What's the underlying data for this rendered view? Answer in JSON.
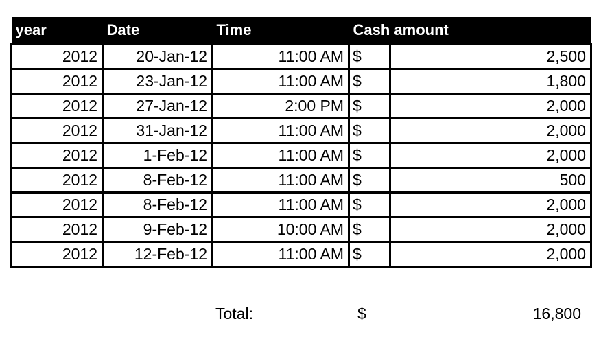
{
  "sheet": {
    "headers": [
      "year",
      "Date",
      "Time",
      "Cash amount"
    ],
    "currency_symbol": "$",
    "rows": [
      {
        "year": "2012",
        "date": "20-Jan-12",
        "time": "11:00 AM",
        "amount": "2,500"
      },
      {
        "year": "2012",
        "date": "23-Jan-12",
        "time": "11:00 AM",
        "amount": "1,800"
      },
      {
        "year": "2012",
        "date": "27-Jan-12",
        "time": "2:00 PM",
        "amount": "2,000"
      },
      {
        "year": "2012",
        "date": "31-Jan-12",
        "time": "11:00 AM",
        "amount": "2,000"
      },
      {
        "year": "2012",
        "date": "1-Feb-12",
        "time": "11:00 AM",
        "amount": "2,000"
      },
      {
        "year": "2012",
        "date": "8-Feb-12",
        "time": "11:00 AM",
        "amount": "500"
      },
      {
        "year": "2012",
        "date": "8-Feb-12",
        "time": "11:00 AM",
        "amount": "2,000"
      },
      {
        "year": "2012",
        "date": "9-Feb-12",
        "time": "10:00 AM",
        "amount": "2,000"
      },
      {
        "year": "2012",
        "date": "12-Feb-12",
        "time": "11:00 AM",
        "amount": "2,000"
      }
    ],
    "total": {
      "label": "Total:",
      "currency_symbol": "$",
      "value": "16,800"
    }
  }
}
